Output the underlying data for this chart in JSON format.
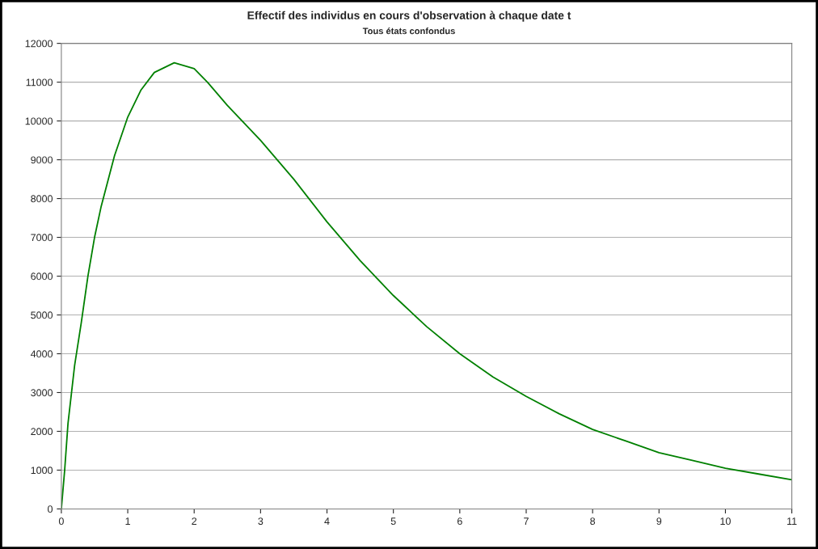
{
  "chart_data": {
    "type": "line",
    "title": "Effectif des individus en cours d'observation à chaque date t",
    "subtitle": "Tous états confondus",
    "x": [
      0,
      0.05,
      0.1,
      0.2,
      0.3,
      0.4,
      0.5,
      0.6,
      0.8,
      1.0,
      1.2,
      1.4,
      1.7,
      2.0,
      2.2,
      2.5,
      3,
      3.5,
      4,
      4.5,
      5,
      5.5,
      6,
      6.5,
      7,
      7.5,
      8,
      8.5,
      9,
      9.5,
      10,
      10.5,
      11
    ],
    "series": [
      {
        "color": "#008000",
        "values": [
          0,
          1000,
          2200,
          3700,
          4800,
          6000,
          7000,
          7800,
          9100,
          10100,
          10800,
          11250,
          11500,
          11350,
          11000,
          10400,
          9500,
          8500,
          7400,
          6400,
          5500,
          4700,
          4000,
          3400,
          2900,
          2450,
          2050,
          1750,
          1450,
          1250,
          1050,
          900,
          750
        ]
      }
    ],
    "xlim": [
      0,
      11
    ],
    "xticks": [
      0,
      1,
      2,
      3,
      4,
      5,
      6,
      7,
      8,
      9,
      10,
      11
    ],
    "ylim": [
      0,
      12000
    ],
    "yticks": [
      0,
      1000,
      2000,
      3000,
      4000,
      5000,
      6000,
      7000,
      8000,
      9000,
      10000,
      11000,
      12000
    ],
    "grid": "y",
    "legend": false,
    "marker": "none",
    "line_style": "solid"
  }
}
